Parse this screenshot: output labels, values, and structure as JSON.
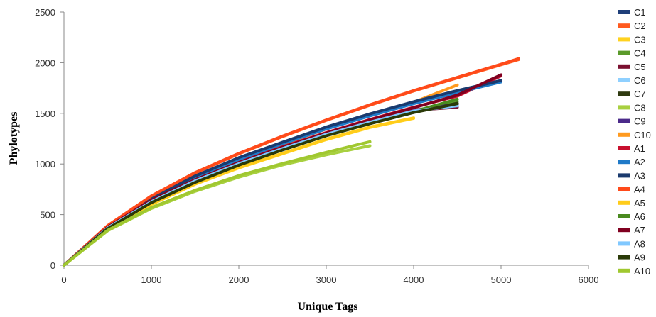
{
  "chart_data": {
    "type": "line",
    "xlabel": "Unique Tags",
    "ylabel": "Phylotypes",
    "xlim": [
      0,
      6000
    ],
    "ylim": [
      0,
      2500
    ],
    "x_ticks": [
      "0",
      "1000",
      "2000",
      "3000",
      "4000",
      "5000",
      "6000"
    ],
    "y_ticks": [
      "0",
      "500",
      "1000",
      "1500",
      "2000",
      "2500"
    ],
    "grid": false,
    "legend_position": "right",
    "series": [
      {
        "name": "C1",
        "color": "#1f3f7a",
        "points": [
          [
            0,
            0
          ],
          [
            500,
            385
          ],
          [
            1000,
            660
          ],
          [
            1500,
            880
          ],
          [
            2000,
            1060
          ],
          [
            2500,
            1210
          ],
          [
            3000,
            1360
          ],
          [
            3500,
            1490
          ],
          [
            4000,
            1610
          ],
          [
            4500,
            1720
          ],
          [
            5000,
            1820
          ]
        ]
      },
      {
        "name": "C2",
        "color": "#ff5a1f",
        "points": [
          [
            0,
            0
          ],
          [
            500,
            390
          ],
          [
            1000,
            680
          ],
          [
            1500,
            910
          ],
          [
            2000,
            1100
          ],
          [
            2500,
            1270
          ],
          [
            3000,
            1430
          ],
          [
            3500,
            1580
          ],
          [
            4000,
            1720
          ],
          [
            4500,
            1850
          ],
          [
            5000,
            1980
          ],
          [
            5200,
            2030
          ]
        ]
      },
      {
        "name": "C3",
        "color": "#ffd21f",
        "points": [
          [
            0,
            0
          ],
          [
            500,
            350
          ],
          [
            1000,
            600
          ],
          [
            1500,
            800
          ],
          [
            2000,
            960
          ],
          [
            2500,
            1100
          ],
          [
            3000,
            1240
          ],
          [
            3500,
            1360
          ],
          [
            4000,
            1450
          ]
        ]
      },
      {
        "name": "C4",
        "color": "#5a9a2a",
        "points": [
          [
            0,
            0
          ],
          [
            500,
            370
          ],
          [
            1000,
            630
          ],
          [
            1500,
            830
          ],
          [
            2000,
            1000
          ],
          [
            2500,
            1150
          ],
          [
            3000,
            1290
          ],
          [
            3500,
            1410
          ],
          [
            4000,
            1520
          ],
          [
            4500,
            1620
          ]
        ]
      },
      {
        "name": "C5",
        "color": "#7a1030",
        "points": [
          [
            0,
            0
          ],
          [
            500,
            375
          ],
          [
            1000,
            640
          ],
          [
            1500,
            840
          ],
          [
            2000,
            1010
          ],
          [
            2500,
            1160
          ],
          [
            3000,
            1300
          ],
          [
            3500,
            1420
          ],
          [
            4000,
            1530
          ],
          [
            4500,
            1560
          ]
        ]
      },
      {
        "name": "C6",
        "color": "#8fd0ff",
        "points": [
          [
            0,
            0
          ],
          [
            500,
            370
          ],
          [
            1000,
            630
          ],
          [
            1500,
            835
          ],
          [
            2000,
            1005
          ],
          [
            2500,
            1155
          ],
          [
            3000,
            1295
          ],
          [
            3500,
            1415
          ],
          [
            4000,
            1525
          ],
          [
            4500,
            1580
          ]
        ]
      },
      {
        "name": "C7",
        "color": "#2f3a10",
        "points": [
          [
            0,
            0
          ],
          [
            500,
            365
          ],
          [
            1000,
            620
          ],
          [
            1500,
            820
          ],
          [
            2000,
            990
          ],
          [
            2500,
            1140
          ],
          [
            3000,
            1280
          ],
          [
            3500,
            1400
          ],
          [
            4000,
            1510
          ],
          [
            4500,
            1600
          ]
        ]
      },
      {
        "name": "C8",
        "color": "#a8d040",
        "points": [
          [
            0,
            0
          ],
          [
            500,
            340
          ],
          [
            1000,
            560
          ],
          [
            1500,
            730
          ],
          [
            2000,
            870
          ],
          [
            2500,
            990
          ],
          [
            3000,
            1090
          ],
          [
            3500,
            1180
          ]
        ]
      },
      {
        "name": "C9",
        "color": "#4b2a8a",
        "points": [
          [
            0,
            0
          ],
          [
            500,
            372
          ],
          [
            1000,
            635
          ],
          [
            1500,
            840
          ],
          [
            2000,
            1010
          ],
          [
            2500,
            1160
          ],
          [
            3000,
            1300
          ],
          [
            3500,
            1420
          ],
          [
            4000,
            1530
          ],
          [
            4500,
            1590
          ]
        ]
      },
      {
        "name": "C10",
        "color": "#ff9a1f",
        "points": [
          [
            0,
            0
          ],
          [
            500,
            380
          ],
          [
            1000,
            650
          ],
          [
            1500,
            865
          ],
          [
            2000,
            1040
          ],
          [
            2500,
            1195
          ],
          [
            3000,
            1345
          ],
          [
            3500,
            1480
          ],
          [
            4000,
            1610
          ],
          [
            4500,
            1780
          ]
        ]
      },
      {
        "name": "A1",
        "color": "#c8102e",
        "points": [
          [
            0,
            0
          ],
          [
            500,
            378
          ],
          [
            1000,
            645
          ],
          [
            1500,
            850
          ],
          [
            2000,
            1020
          ],
          [
            2500,
            1170
          ],
          [
            3000,
            1310
          ],
          [
            3500,
            1440
          ],
          [
            4000,
            1560
          ],
          [
            4500,
            1670
          ],
          [
            5000,
            1870
          ]
        ]
      },
      {
        "name": "A2",
        "color": "#1f7ac8",
        "points": [
          [
            0,
            0
          ],
          [
            500,
            382
          ],
          [
            1000,
            655
          ],
          [
            1500,
            870
          ],
          [
            2000,
            1045
          ],
          [
            2500,
            1200
          ],
          [
            3000,
            1345
          ],
          [
            3500,
            1475
          ],
          [
            4000,
            1595
          ],
          [
            4500,
            1705
          ],
          [
            5000,
            1810
          ]
        ]
      },
      {
        "name": "A3",
        "color": "#1a3a6e",
        "points": [
          [
            0,
            0
          ],
          [
            500,
            388
          ],
          [
            1000,
            662
          ],
          [
            1500,
            882
          ],
          [
            2000,
            1062
          ],
          [
            2500,
            1215
          ],
          [
            3000,
            1365
          ],
          [
            3500,
            1495
          ],
          [
            4000,
            1615
          ],
          [
            4500,
            1725
          ],
          [
            5000,
            1825
          ]
        ]
      },
      {
        "name": "A4",
        "color": "#ff4a1a",
        "points": [
          [
            0,
            0
          ],
          [
            500,
            392
          ],
          [
            1000,
            685
          ],
          [
            1500,
            915
          ],
          [
            2000,
            1105
          ],
          [
            2500,
            1275
          ],
          [
            3000,
            1435
          ],
          [
            3500,
            1585
          ],
          [
            4000,
            1725
          ],
          [
            4500,
            1855
          ],
          [
            5000,
            1985
          ],
          [
            5200,
            2040
          ]
        ]
      },
      {
        "name": "A5",
        "color": "#ffcc1a",
        "points": [
          [
            0,
            0
          ],
          [
            500,
            352
          ],
          [
            1000,
            605
          ],
          [
            1500,
            805
          ],
          [
            2000,
            965
          ],
          [
            2500,
            1105
          ],
          [
            3000,
            1245
          ],
          [
            3500,
            1365
          ],
          [
            4000,
            1455
          ]
        ]
      },
      {
        "name": "A6",
        "color": "#4a8a20",
        "points": [
          [
            0,
            0
          ],
          [
            500,
            368
          ],
          [
            1000,
            628
          ],
          [
            1500,
            828
          ],
          [
            2000,
            998
          ],
          [
            2500,
            1148
          ],
          [
            3000,
            1288
          ],
          [
            3500,
            1408
          ],
          [
            4000,
            1518
          ],
          [
            4500,
            1640
          ]
        ]
      },
      {
        "name": "A7",
        "color": "#800020",
        "points": [
          [
            0,
            0
          ],
          [
            500,
            376
          ],
          [
            1000,
            642
          ],
          [
            1500,
            845
          ],
          [
            2000,
            1015
          ],
          [
            2500,
            1165
          ],
          [
            3000,
            1305
          ],
          [
            3500,
            1435
          ],
          [
            4000,
            1555
          ],
          [
            4500,
            1680
          ],
          [
            5000,
            1880
          ]
        ]
      },
      {
        "name": "A8",
        "color": "#80c8ff",
        "points": [
          [
            0,
            0
          ],
          [
            500,
            368
          ],
          [
            1000,
            628
          ],
          [
            1500,
            833
          ],
          [
            2000,
            1003
          ],
          [
            2500,
            1153
          ],
          [
            3000,
            1293
          ],
          [
            3500,
            1413
          ],
          [
            4000,
            1523
          ],
          [
            4500,
            1575
          ]
        ]
      },
      {
        "name": "A9",
        "color": "#2a3a08",
        "points": [
          [
            0,
            0
          ],
          [
            500,
            362
          ],
          [
            1000,
            618
          ],
          [
            1500,
            818
          ],
          [
            2000,
            988
          ],
          [
            2500,
            1138
          ],
          [
            3000,
            1278
          ],
          [
            3500,
            1398
          ],
          [
            4000,
            1508
          ],
          [
            4500,
            1595
          ]
        ]
      },
      {
        "name": "A10",
        "color": "#a0c830",
        "points": [
          [
            0,
            0
          ],
          [
            500,
            345
          ],
          [
            1000,
            570
          ],
          [
            1500,
            740
          ],
          [
            2000,
            885
          ],
          [
            2500,
            1005
          ],
          [
            3000,
            1115
          ],
          [
            3500,
            1220
          ]
        ]
      }
    ]
  }
}
